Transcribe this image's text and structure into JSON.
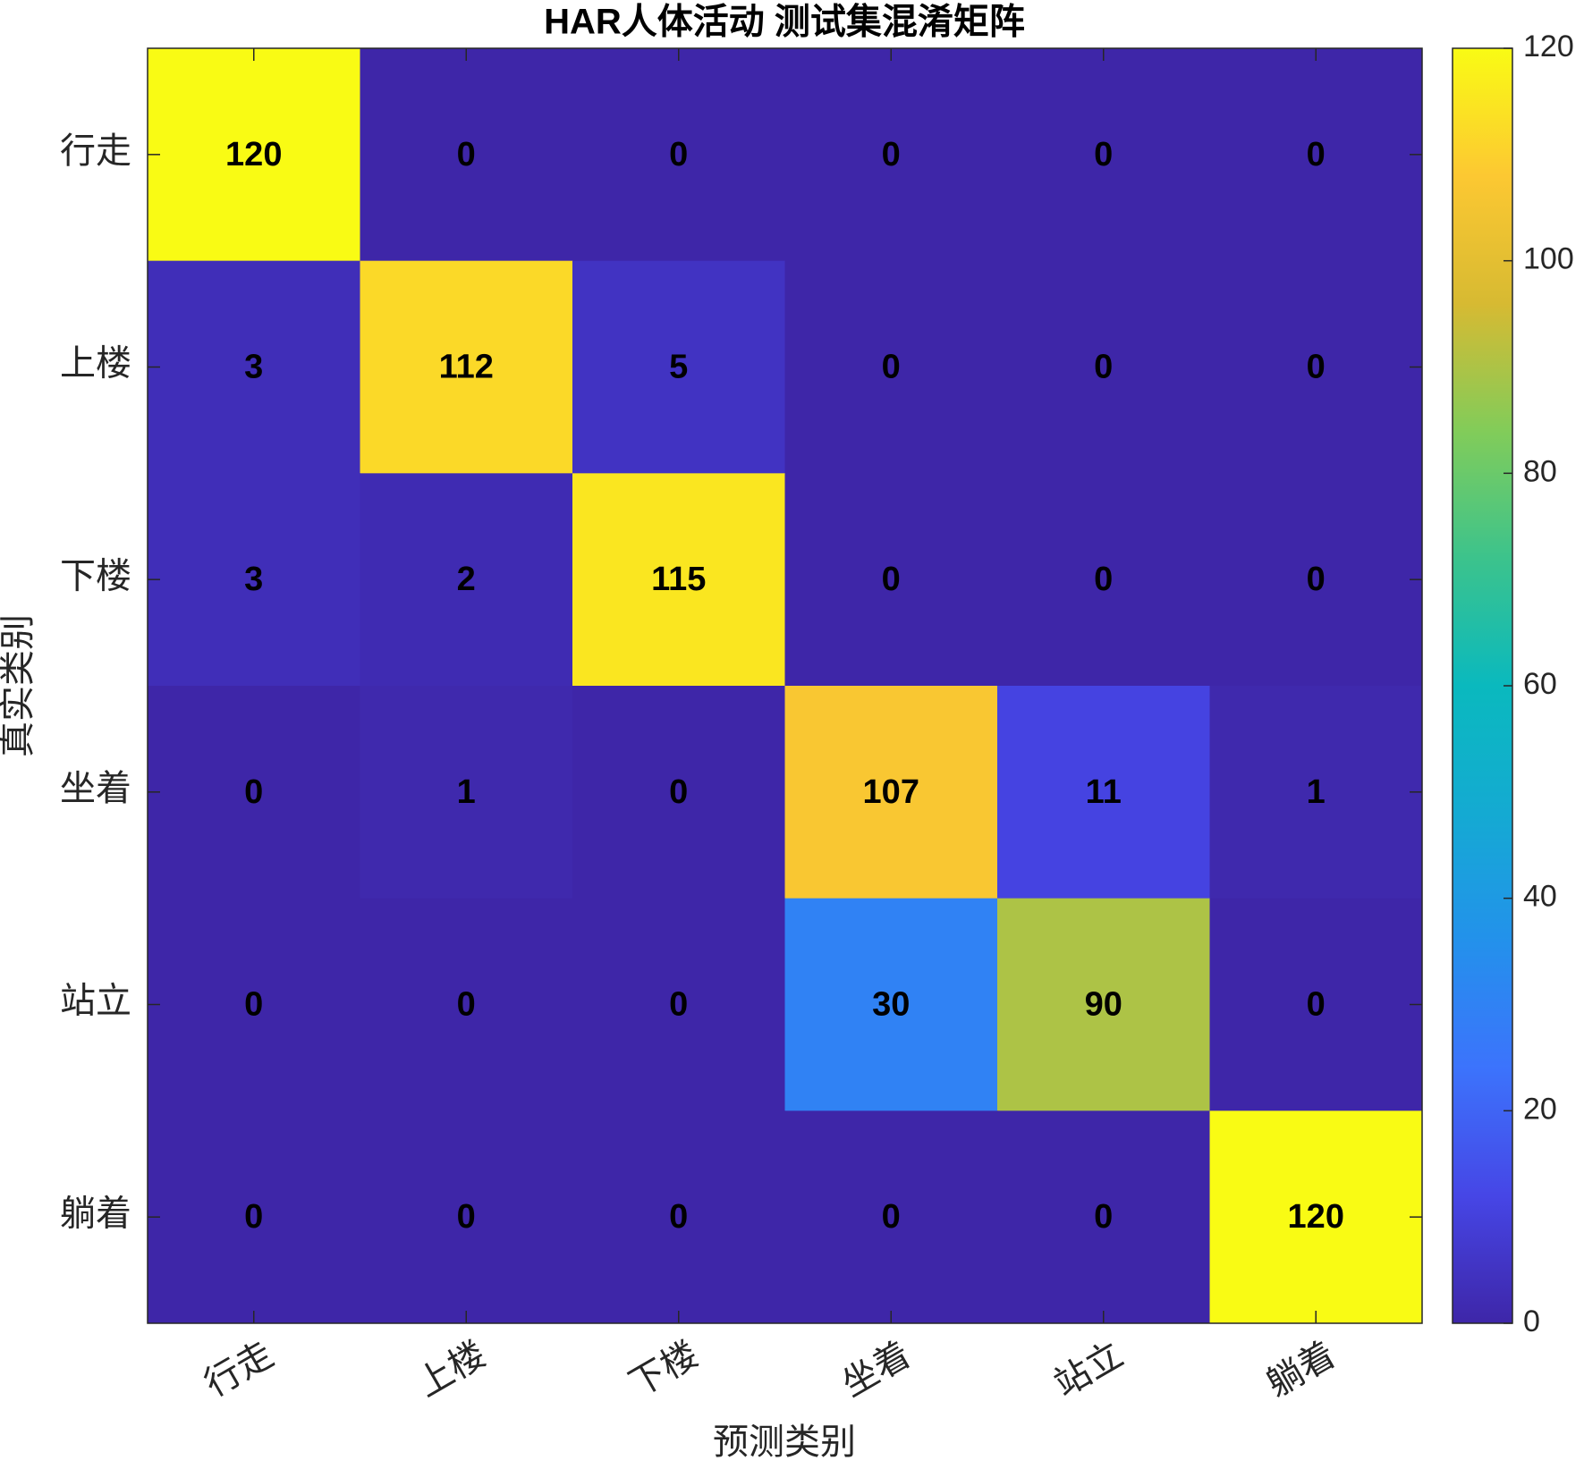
{
  "chart_data": {
    "type": "heatmap",
    "title": "HAR人体活动 测试集混淆矩阵",
    "x_label": "预测类别",
    "y_label": "真实类别",
    "x_categories": [
      "行走",
      "上楼",
      "下楼",
      "坐着",
      "站立",
      "躺着"
    ],
    "y_categories": [
      "行走",
      "上楼",
      "下楼",
      "坐着",
      "站立",
      "躺着"
    ],
    "values": [
      [
        120,
        0,
        0,
        0,
        0,
        0
      ],
      [
        3,
        112,
        5,
        0,
        0,
        0
      ],
      [
        3,
        2,
        115,
        0,
        0,
        0
      ],
      [
        0,
        1,
        0,
        107,
        11,
        1
      ],
      [
        0,
        0,
        0,
        30,
        90,
        0
      ],
      [
        0,
        0,
        0,
        0,
        0,
        120
      ]
    ],
    "colormap": "parula",
    "zlim": [
      0,
      120
    ],
    "colorbar_ticks": [
      0,
      20,
      40,
      60,
      80,
      100,
      120
    ]
  }
}
